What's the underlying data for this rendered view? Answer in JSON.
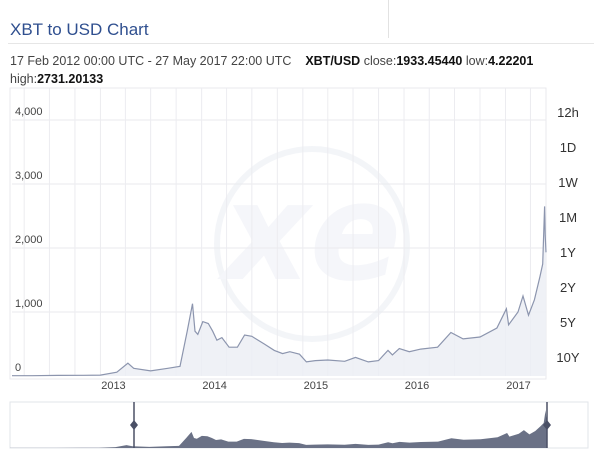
{
  "title": "XBT to USD Chart",
  "info": {
    "range": "17 Feb 2012 00:00 UTC - 27 May 2017 22:00 UTC",
    "pair": "XBT/USD",
    "close_label": "close:",
    "close": "1933.45440",
    "low_label": "low:",
    "low": "4.22201",
    "high_label": "high:",
    "high": "2731.20133"
  },
  "periods": [
    "12h",
    "1D",
    "1W",
    "1M",
    "1Y",
    "2Y",
    "5Y",
    "10Y"
  ],
  "colors": {
    "line": "#8c95ae",
    "fill": "#eceef4",
    "nav_fill": "#6a7186",
    "title": "#2f4f8f"
  },
  "chart_data": {
    "type": "line",
    "title": "XBT to USD Chart",
    "xlabel": "",
    "ylabel": "",
    "x_ticks": [
      "2013",
      "2014",
      "2015",
      "2016",
      "2017"
    ],
    "y_ticks": [
      0,
      1000,
      2000,
      3000,
      4000
    ],
    "y_tick_labels": [
      "0",
      "1,000",
      "2,000",
      "3,000",
      "4,000"
    ],
    "xlim": [
      "2012-02-17",
      "2017-05-27"
    ],
    "ylim": [
      0,
      4500
    ],
    "grid": true,
    "series": [
      {
        "x": [
          "2012-02-17",
          "2012-05-01",
          "2012-08-01",
          "2012-11-01",
          "2013-01-01",
          "2013-03-01",
          "2013-04-10",
          "2013-05-01",
          "2013-07-01",
          "2013-09-01",
          "2013-10-15",
          "2013-11-10",
          "2013-11-29",
          "2013-12-08",
          "2013-12-18",
          "2014-01-05",
          "2014-01-25",
          "2014-02-10",
          "2014-02-25",
          "2014-03-15",
          "2014-04-10",
          "2014-05-10",
          "2014-06-05",
          "2014-07-01",
          "2014-08-15",
          "2014-09-20",
          "2014-10-20",
          "2014-11-15",
          "2014-12-20",
          "2015-01-14",
          "2015-02-15",
          "2015-04-01",
          "2015-06-01",
          "2015-07-10",
          "2015-08-25",
          "2015-10-01",
          "2015-11-04",
          "2015-11-20",
          "2015-12-15",
          "2016-01-20",
          "2016-03-01",
          "2016-05-01",
          "2016-06-18",
          "2016-08-01",
          "2016-10-01",
          "2016-12-01",
          "2017-01-04",
          "2017-01-12",
          "2017-02-15",
          "2017-03-05",
          "2017-03-25",
          "2017-04-15",
          "2017-05-05",
          "2017-05-15",
          "2017-05-22",
          "2017-05-24",
          "2017-05-27"
        ],
        "y": [
          5,
          5,
          10,
          11,
          14,
          60,
          200,
          120,
          80,
          120,
          150,
          700,
          1130,
          700,
          650,
          850,
          820,
          700,
          560,
          600,
          450,
          450,
          640,
          620,
          500,
          400,
          350,
          380,
          340,
          220,
          240,
          250,
          230,
          290,
          220,
          240,
          400,
          330,
          430,
          380,
          420,
          450,
          680,
          580,
          610,
          750,
          1050,
          800,
          1000,
          1250,
          950,
          1190,
          1550,
          1750,
          2650,
          2200,
          1933
        ]
      }
    ]
  }
}
